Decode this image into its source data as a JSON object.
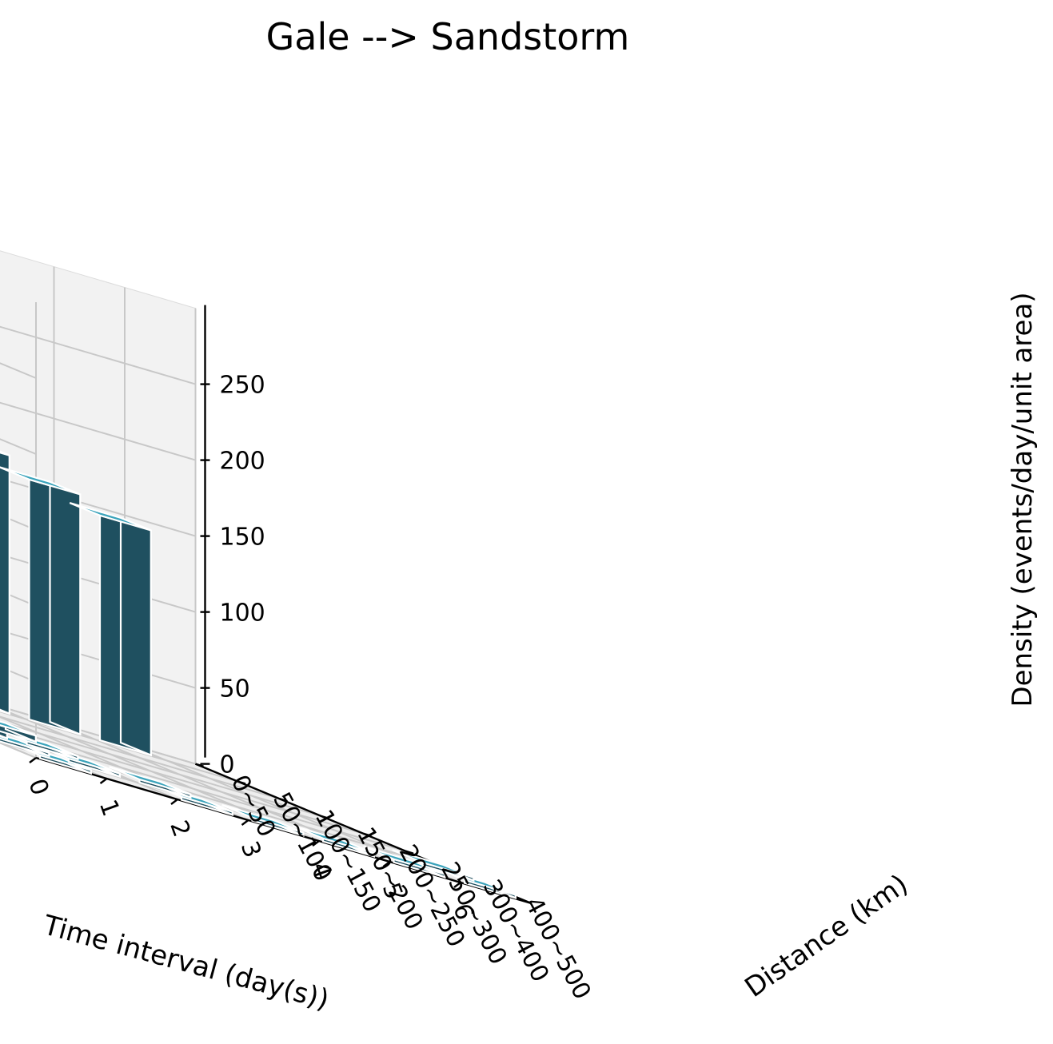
{
  "chart_data": {
    "type": "bar3d",
    "title": "Gale --> Sandstorm",
    "xlabel": "Time interval (day(s))",
    "ylabel": "Distance (km)",
    "zlabel": "Density (events/day/unit area)",
    "x_ticks": [
      "0",
      "1",
      "2",
      "3",
      "4",
      "5",
      "6"
    ],
    "y_ticks": [
      "0~50",
      "50~100",
      "100~150",
      "150~200",
      "200~250",
      "250~300",
      "300~400",
      "400~500"
    ],
    "z_ticks": [
      "0",
      "50",
      "100",
      "150",
      "200",
      "250"
    ],
    "zlim": [
      0,
      300
    ],
    "grid": true,
    "colors": {
      "bar_side": "#1f5060",
      "bar_top": "#3aa3bb",
      "bar_edge": "#ffffff"
    },
    "bars": [
      {
        "x": "0",
        "y": "0~50",
        "value": 286
      },
      {
        "x": "1",
        "y": "0~50",
        "value": 240
      },
      {
        "x": "2",
        "y": "0~50",
        "value": 180
      },
      {
        "x": "3",
        "y": "0~50",
        "value": 170
      },
      {
        "x": "4",
        "y": "0~50",
        "value": 158
      },
      {
        "x": "5",
        "y": "0~50",
        "value": 148
      },
      {
        "x": "0",
        "y": "50~100",
        "value": 65
      },
      {
        "x": "0",
        "y": "100~150",
        "value": 28
      },
      {
        "x": "0",
        "y": "150~200",
        "value": 14
      },
      {
        "x": "0",
        "y": "200~250",
        "value": 6
      },
      {
        "x": "0",
        "y": "250~300",
        "value": 4
      },
      {
        "x": "0",
        "y": "300~400",
        "value": 2
      },
      {
        "x": "0",
        "y": "400~500",
        "value": 1
      },
      {
        "x": "1",
        "y": "150~200",
        "value": 6
      },
      {
        "x": "1",
        "y": "200~250",
        "value": 4
      },
      {
        "x": "1",
        "y": "250~300",
        "value": 2
      },
      {
        "x": "1",
        "y": "300~400",
        "value": 1
      },
      {
        "x": "2",
        "y": "300~400",
        "value": 1
      },
      {
        "x": "2",
        "y": "400~500",
        "value": 1
      },
      {
        "x": "3",
        "y": "400~500",
        "value": 1
      },
      {
        "x": "4",
        "y": "400~500",
        "value": 1
      },
      {
        "x": "5",
        "y": "400~500",
        "value": 1
      },
      {
        "x": "6",
        "y": "400~500",
        "value": 1
      },
      {
        "x": "6",
        "y": "300~400",
        "value": 1
      }
    ]
  }
}
